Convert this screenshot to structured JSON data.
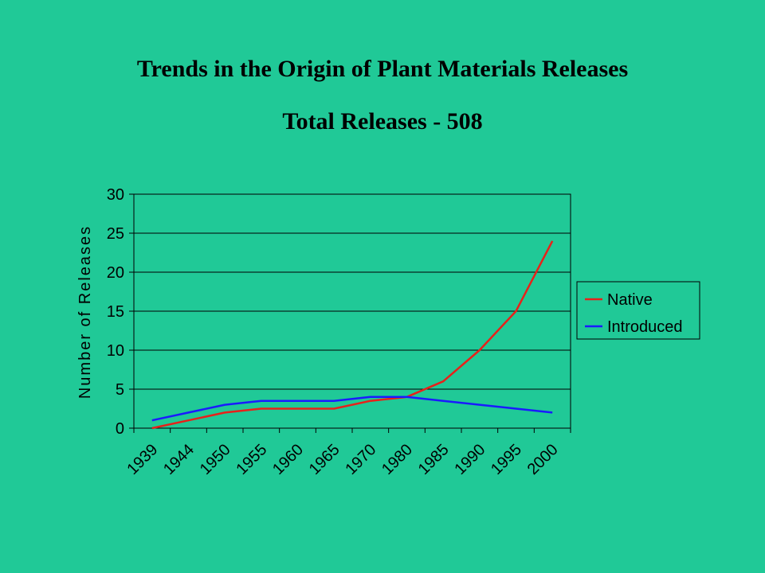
{
  "chart_data": {
    "type": "line",
    "title": "Trends in the Origin of Plant Materials Releases",
    "subtitle": "Total Releases - 508",
    "ylabel": "Number of Releases",
    "xlabel": "",
    "categories": [
      "1939",
      "1944",
      "1950",
      "1955",
      "1960",
      "1965",
      "1970",
      "1980",
      "1985",
      "1990",
      "1995",
      "2000"
    ],
    "ylim": [
      0,
      30
    ],
    "yticks": [
      0,
      5,
      10,
      15,
      20,
      25,
      30
    ],
    "grid": true,
    "legend_position": "right",
    "series": [
      {
        "name": "Native",
        "color": "#e8211a",
        "values": [
          0,
          1,
          2,
          2.5,
          2.5,
          2.5,
          3.5,
          4,
          6,
          10,
          15,
          24
        ]
      },
      {
        "name": "Introduced",
        "color": "#1a1aff",
        "values": [
          1,
          2,
          3,
          3.5,
          3.5,
          3.5,
          4,
          4,
          3.5,
          3,
          2.5,
          2
        ]
      }
    ]
  }
}
